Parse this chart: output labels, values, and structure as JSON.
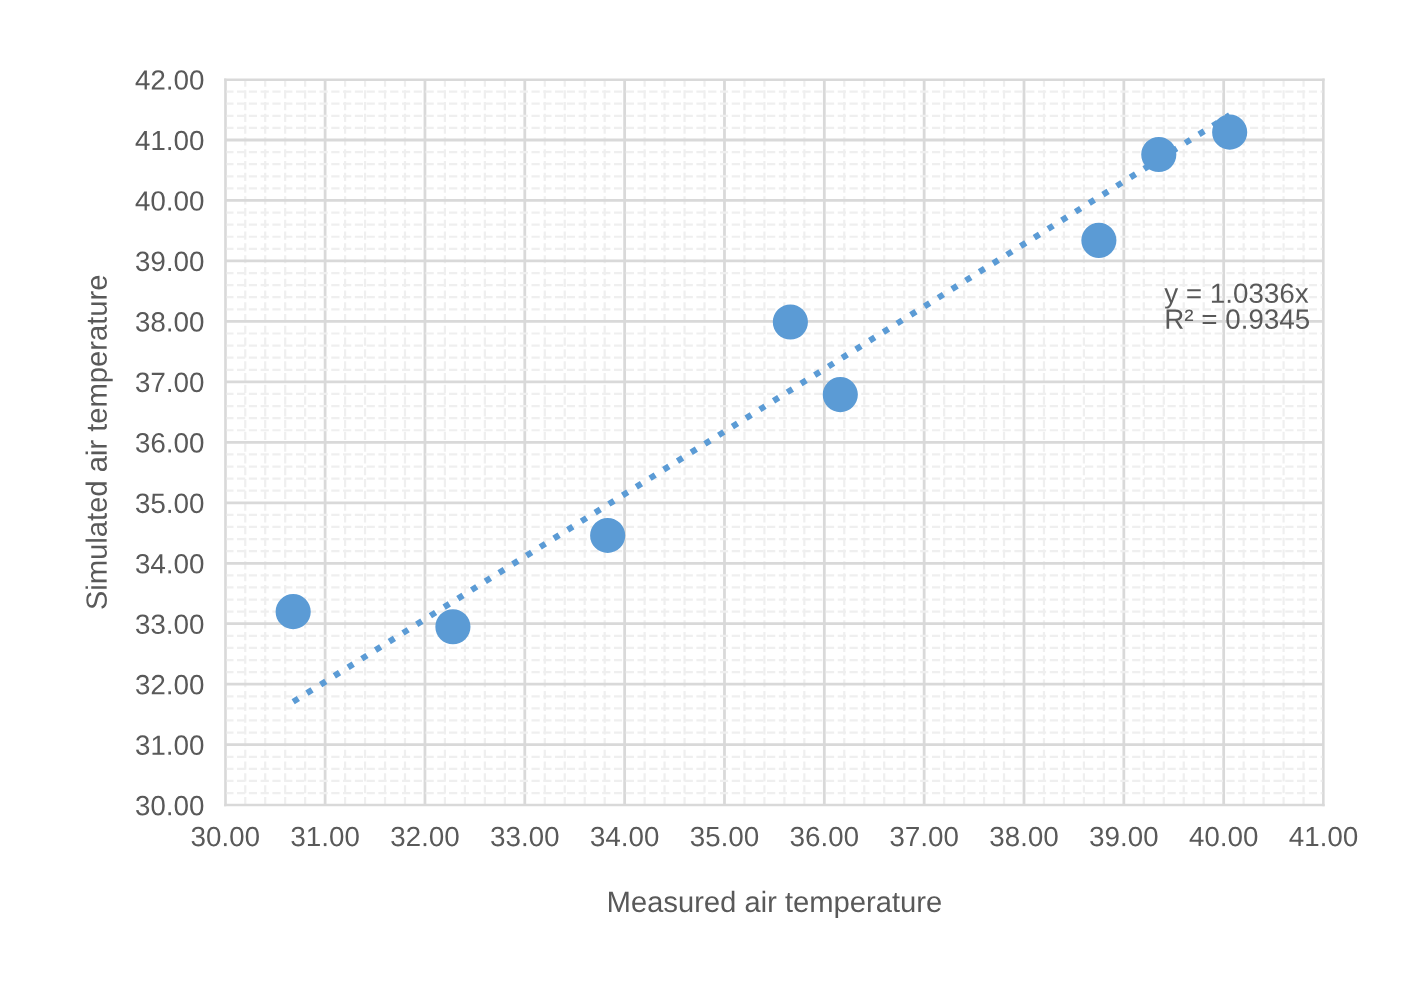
{
  "chart_data": {
    "type": "scatter",
    "xlabel": "Measured air temperature",
    "ylabel": "Simulated air temperature",
    "series": [
      {
        "color": "#5b9bd5",
        "marker": "circle",
        "x": [
          30.68,
          32.28,
          33.83,
          35.66,
          36.16,
          38.75,
          39.35,
          40.06
        ],
        "values": [
          33.2,
          32.95,
          34.46,
          37.99,
          36.79,
          39.34,
          40.76,
          41.13
        ]
      },
      {
        "type": "line",
        "color": "#5b9bd5",
        "line_style": "dotted",
        "marker": "none",
        "x": [
          30.68,
          40.06
        ],
        "values": [
          31.71,
          41.41
        ]
      }
    ],
    "annotations": [
      "y = 1.0336x\nR² = 0.9345"
    ],
    "xlim": [
      30,
      41
    ],
    "ylim": [
      30,
      42
    ],
    "xticks": [
      {
        "value": 30,
        "label": "30.00"
      },
      {
        "value": 31,
        "label": "31.00"
      },
      {
        "value": 32,
        "label": "32.00"
      },
      {
        "value": 33,
        "label": "33.00"
      },
      {
        "value": 34,
        "label": "34.00"
      },
      {
        "value": 35,
        "label": "35.00"
      },
      {
        "value": 36,
        "label": "36.00"
      },
      {
        "value": 37,
        "label": "37.00"
      },
      {
        "value": 38,
        "label": "38.00"
      },
      {
        "value": 39,
        "label": "39.00"
      },
      {
        "value": 40,
        "label": "40.00"
      },
      {
        "value": 41,
        "label": "41.00"
      }
    ],
    "yticks": [
      {
        "value": 30,
        "label": "30.00"
      },
      {
        "value": 31,
        "label": "31.00"
      },
      {
        "value": 32,
        "label": "32.00"
      },
      {
        "value": 33,
        "label": "33.00"
      },
      {
        "value": 34,
        "label": "34.00"
      },
      {
        "value": 35,
        "label": "35.00"
      },
      {
        "value": 36,
        "label": "36.00"
      },
      {
        "value": 37,
        "label": "37.00"
      },
      {
        "value": 38,
        "label": "38.00"
      },
      {
        "value": 39,
        "label": "39.00"
      },
      {
        "value": 40,
        "label": "40.00"
      },
      {
        "value": 41,
        "label": "41.00"
      },
      {
        "value": 42,
        "label": "42.00"
      }
    ],
    "grid": true,
    "legend": false
  }
}
